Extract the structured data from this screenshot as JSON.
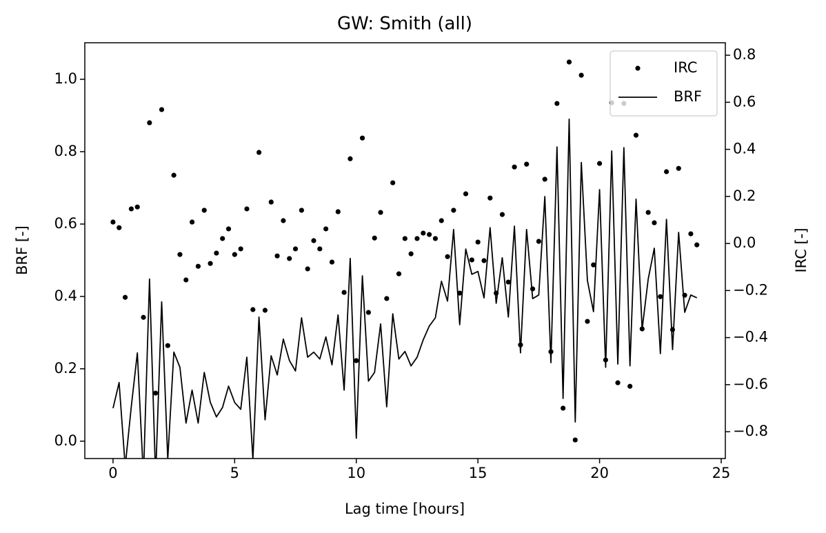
{
  "chart_data": {
    "type": "combo",
    "title": "GW: Smith (all)",
    "xlabel": "Lag time [hours]",
    "ylabel": "BRF [-]",
    "y2label": "IRC [-]",
    "x": [
      0,
      0.25,
      0.5,
      0.75,
      1,
      1.25,
      1.5,
      1.75,
      2,
      2.25,
      2.5,
      2.75,
      3,
      3.25,
      3.5,
      3.75,
      4,
      4.25,
      4.5,
      4.75,
      5,
      5.25,
      5.5,
      5.75,
      6,
      6.25,
      6.5,
      6.75,
      7,
      7.25,
      7.5,
      7.75,
      8,
      8.25,
      8.5,
      8.75,
      9,
      9.25,
      9.5,
      9.75,
      10,
      10.25,
      10.5,
      10.75,
      11,
      11.25,
      11.5,
      11.75,
      12,
      12.25,
      12.5,
      12.75,
      13,
      13.25,
      13.5,
      13.75,
      14,
      14.25,
      14.5,
      14.75,
      15,
      15.25,
      15.5,
      15.75,
      16,
      16.25,
      16.5,
      16.75,
      17,
      17.25,
      17.5,
      17.75,
      18,
      18.25,
      18.5,
      18.75,
      19,
      19.25,
      19.5,
      19.75,
      20,
      20.25,
      20.5,
      20.75,
      21,
      21.25,
      21.5,
      21.75,
      22,
      22.25,
      22.5,
      22.75,
      23,
      23.25,
      23.5,
      23.75,
      24
    ],
    "series": [
      {
        "name": "IRC",
        "type": "scatter",
        "axis": "y2",
        "color": "#000000",
        "values": [
          0.091,
          0.067,
          -0.229,
          0.147,
          0.155,
          -0.314,
          0.513,
          -0.636,
          0.569,
          -0.434,
          0.29,
          -0.047,
          -0.155,
          0.091,
          -0.097,
          0.141,
          -0.085,
          -0.041,
          0.021,
          0.062,
          -0.047,
          -0.023,
          0.147,
          -0.281,
          0.387,
          -0.284,
          0.176,
          -0.053,
          0.097,
          -0.064,
          -0.023,
          0.141,
          -0.108,
          0.012,
          -0.023,
          0.062,
          -0.079,
          0.135,
          -0.208,
          0.36,
          -0.498,
          0.448,
          -0.293,
          0.023,
          0.132,
          -0.234,
          0.258,
          -0.129,
          0.021,
          -0.044,
          0.021,
          0.044,
          0.038,
          0.021,
          0.097,
          -0.056,
          0.141,
          -0.211,
          0.211,
          -0.07,
          0.006,
          -0.073,
          0.193,
          -0.211,
          0.123,
          -0.164,
          0.325,
          -0.431,
          0.337,
          -0.193,
          0.009,
          0.273,
          -0.46,
          0.595,
          -0.7,
          0.771,
          -0.835,
          0.715,
          -0.331,
          -0.091,
          0.34,
          -0.495,
          0.598,
          -0.592,
          0.595,
          -0.607,
          0.46,
          -0.363,
          0.132,
          0.088,
          -0.226,
          0.305,
          -0.366,
          0.319,
          -0.22,
          0.041,
          -0.006
        ]
      },
      {
        "name": "BRF",
        "type": "line",
        "axis": "y",
        "color": "#000000",
        "values": [
          0.091,
          0.162,
          -0.07,
          0.095,
          0.244,
          -0.1,
          0.448,
          -0.1,
          0.385,
          -0.05,
          0.246,
          0.204,
          0.05,
          0.141,
          0.05,
          0.19,
          0.107,
          0.067,
          0.093,
          0.152,
          0.107,
          0.088,
          0.232,
          -0.05,
          0.343,
          0.059,
          0.236,
          0.183,
          0.282,
          0.223,
          0.194,
          0.341,
          0.232,
          0.246,
          0.227,
          0.288,
          0.211,
          0.349,
          0.141,
          0.505,
          0.008,
          0.457,
          0.166,
          0.19,
          0.324,
          0.095,
          0.352,
          0.227,
          0.248,
          0.208,
          0.232,
          0.28,
          0.318,
          0.341,
          0.442,
          0.387,
          0.585,
          0.322,
          0.531,
          0.461,
          0.469,
          0.396,
          0.59,
          0.381,
          0.507,
          0.343,
          0.594,
          0.244,
          0.585,
          0.394,
          0.404,
          0.676,
          0.217,
          0.813,
          0.118,
          0.89,
          0.053,
          0.77,
          0.444,
          0.358,
          0.695,
          0.204,
          0.802,
          0.213,
          0.811,
          0.208,
          0.669,
          0.309,
          0.448,
          0.533,
          0.242,
          0.613,
          0.253,
          0.577,
          0.356,
          0.404,
          0.396
        ]
      }
    ],
    "xlim": [
      -1.16,
      25.17
    ],
    "xticks": [
      0,
      5,
      10,
      15,
      20,
      25
    ],
    "ylim": [
      -0.048,
      1.101
    ],
    "yticks": [
      {
        "value": 0,
        "label": "0.0"
      },
      {
        "value": 0.2,
        "label": "0.2"
      },
      {
        "value": 0.4,
        "label": "0.4"
      },
      {
        "value": 0.6,
        "label": "0.6"
      },
      {
        "value": 0.8,
        "label": "0.8"
      },
      {
        "value": 1.0,
        "label": "1.0"
      }
    ],
    "y2lim": [
      -0.914,
      0.853
    ],
    "y2ticks": [
      {
        "value": -0.8,
        "label": "−0.8"
      },
      {
        "value": -0.6,
        "label": "−0.6"
      },
      {
        "value": -0.4,
        "label": "−0.4"
      },
      {
        "value": -0.2,
        "label": "−0.2"
      },
      {
        "value": 0,
        "label": "0.0"
      },
      {
        "value": 0.2,
        "label": "0.2"
      },
      {
        "value": 0.4,
        "label": "0.4"
      },
      {
        "value": 0.6,
        "label": "0.6"
      },
      {
        "value": 0.8,
        "label": "0.8"
      }
    ],
    "legend": "upper right"
  }
}
